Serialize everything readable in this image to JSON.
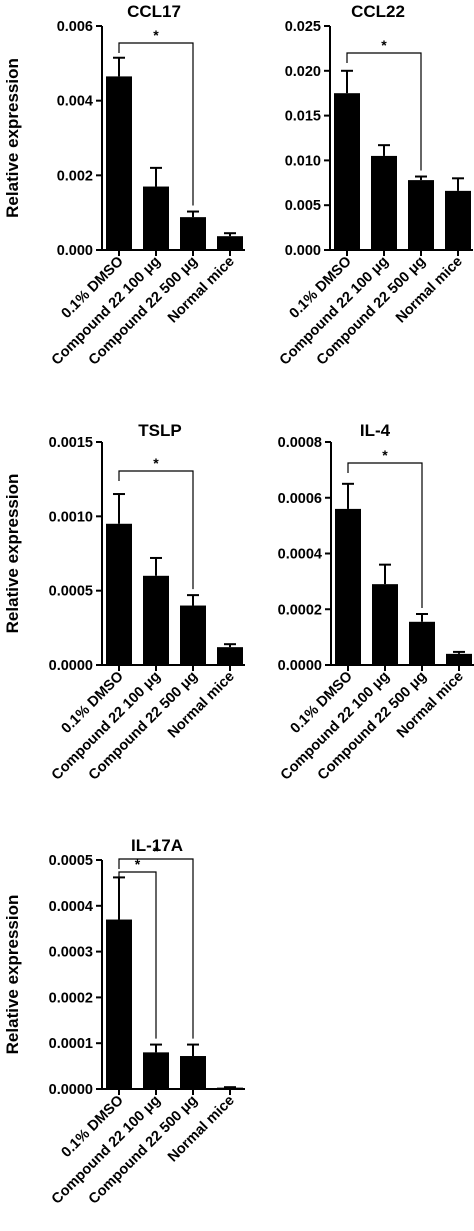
{
  "chart_data": [
    {
      "type": "bar",
      "title": "CCL17",
      "ylabel": "Relative expression",
      "xlabel": "",
      "ylim": [
        0,
        0.006
      ],
      "yticks": [
        "0.000",
        "0.002",
        "0.004",
        "0.006"
      ],
      "categories": [
        "0.1% DMSO",
        "Compound 22 100 μg",
        "Compound 22 500 μg",
        "Normal mice"
      ],
      "values": [
        0.00465,
        0.0017,
        0.00088,
        0.00037
      ],
      "errors": [
        0.0005,
        0.0005,
        0.00015,
        8e-05
      ],
      "significance": [
        {
          "from": 0,
          "to": 2,
          "label": "*"
        }
      ]
    },
    {
      "type": "bar",
      "title": "CCL22",
      "ylabel": "",
      "xlabel": "",
      "ylim": [
        0,
        0.025
      ],
      "yticks": [
        "0.000",
        "0.005",
        "0.010",
        "0.015",
        "0.020",
        "0.025"
      ],
      "categories": [
        "0.1% DMSO",
        "Compound 22 100 μg",
        "Compound 22 500 μg",
        "Normal mice"
      ],
      "values": [
        0.0175,
        0.0105,
        0.0078,
        0.0066
      ],
      "errors": [
        0.0025,
        0.0012,
        0.0004,
        0.0014
      ],
      "significance": [
        {
          "from": 0,
          "to": 2,
          "label": "*"
        }
      ]
    },
    {
      "type": "bar",
      "title": "TSLP",
      "ylabel": "Relative expression",
      "xlabel": "",
      "ylim": [
        0,
        0.0015
      ],
      "yticks": [
        "0.0000",
        "0.0005",
        "0.0010",
        "0.0015"
      ],
      "categories": [
        "0.1% DMSO",
        "Compound 22 100 μg",
        "Compound 22 500 μg",
        "Normal mice"
      ],
      "values": [
        0.00095,
        0.0006,
        0.0004,
        0.00012
      ],
      "errors": [
        0.0002,
        0.00012,
        7e-05,
        2e-05
      ],
      "significance": [
        {
          "from": 0,
          "to": 2,
          "label": "*"
        }
      ]
    },
    {
      "type": "bar",
      "title": "IL-4",
      "ylabel": "",
      "xlabel": "",
      "ylim": [
        0,
        0.0008
      ],
      "yticks": [
        "0.0000",
        "0.0002",
        "0.0004",
        "0.0006",
        "0.0008"
      ],
      "categories": [
        "0.1% DMSO",
        "Compound 22 100 μg",
        "Compound 22 500 μg",
        "Normal mice"
      ],
      "values": [
        0.00056,
        0.00029,
        0.000155,
        4e-05
      ],
      "errors": [
        9e-05,
        7e-05,
        2.8e-05,
        7e-06
      ],
      "significance": [
        {
          "from": 0,
          "to": 2,
          "label": "*"
        }
      ]
    },
    {
      "type": "bar",
      "title": "IL-17A",
      "ylabel": "Relative expression",
      "xlabel": "",
      "ylim": [
        0,
        0.0005
      ],
      "yticks": [
        "0.0000",
        "0.0001",
        "0.0002",
        "0.0003",
        "0.0004",
        "0.0005"
      ],
      "categories": [
        "0.1% DMSO",
        "Compound 22 100 μg",
        "Compound 22 500 μg",
        "Normal mice"
      ],
      "values": [
        0.00037,
        8e-05,
        7.2e-05,
        3e-06
      ],
      "errors": [
        9.2e-05,
        1.7e-05,
        2.5e-05,
        1e-06
      ],
      "significance": [
        {
          "from": 0,
          "to": 1,
          "label": "*"
        },
        {
          "from": 0,
          "to": 2,
          "label": "*"
        }
      ]
    }
  ]
}
